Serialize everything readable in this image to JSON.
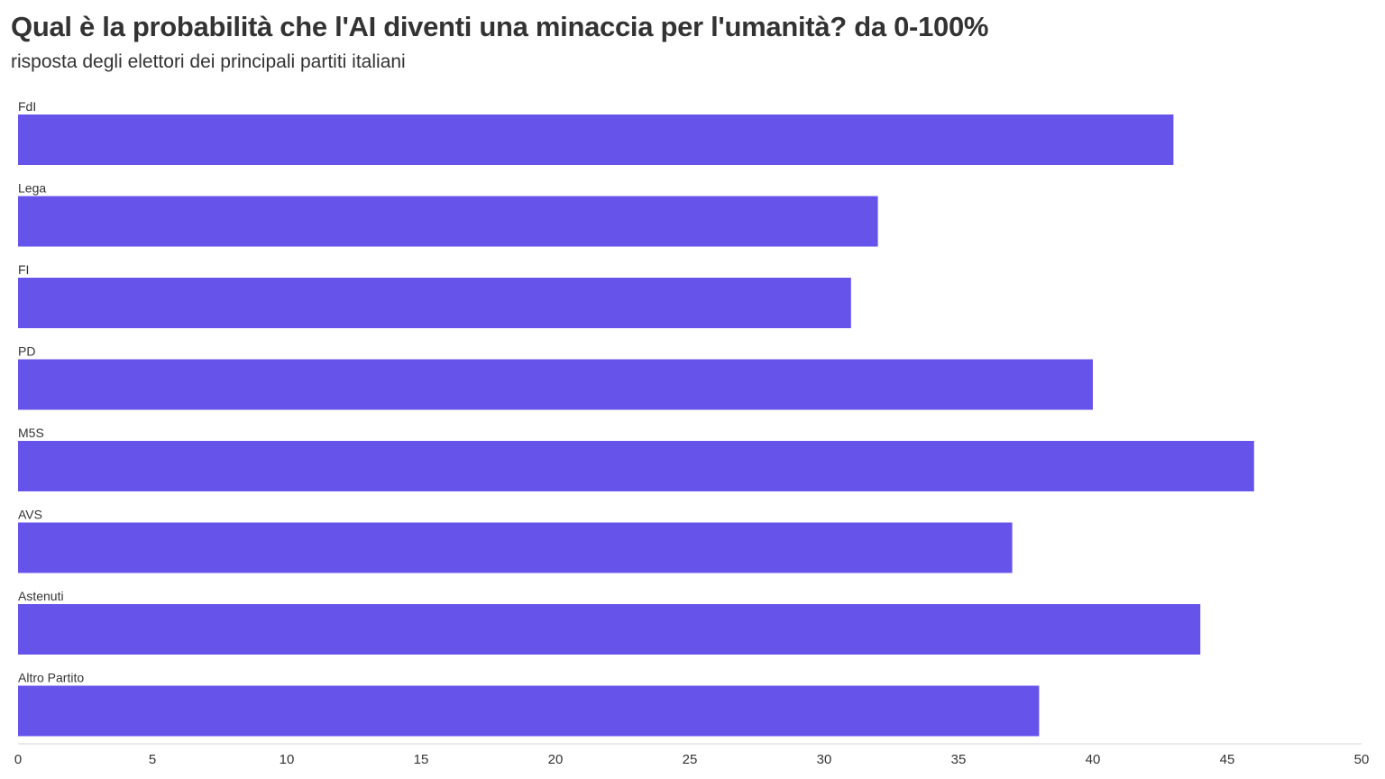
{
  "header": {
    "title": "Qual è la probabilità che l'AI diventi una minaccia per l'umanità? da 0-100%",
    "subtitle": "risposta degli elettori dei principali partiti italiani"
  },
  "chart_data": {
    "type": "bar",
    "orientation": "horizontal",
    "categories": [
      "FdI",
      "Lega",
      "FI",
      "PD",
      "M5S",
      "AVS",
      "Astenuti",
      "Altro Partito"
    ],
    "values": [
      43,
      32,
      31,
      40,
      46,
      37,
      44,
      38
    ],
    "title": "Qual è la probabilità che l'AI diventi una minaccia per l'umanità? da 0-100%",
    "subtitle": "risposta degli elettori dei principali partiti italiani",
    "xlabel": "",
    "ylabel": "",
    "xlim": [
      0,
      50
    ],
    "xticks": [
      0,
      5,
      10,
      15,
      20,
      25,
      30,
      35,
      40,
      45,
      50
    ],
    "grid": false,
    "legend": "none",
    "bar_color": "#6653ea"
  }
}
